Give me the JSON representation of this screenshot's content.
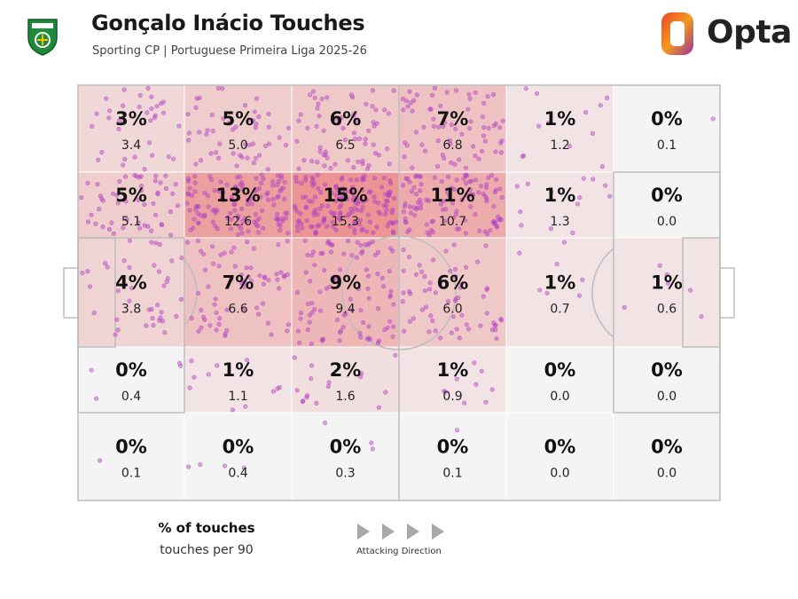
{
  "header": {
    "title": "Gonçalo Inácio Touches",
    "subtitle": "Sporting CP | Portuguese Primeira Liga 2025-26",
    "brand": "Opta",
    "club_badge_icon": "sporting-cp-crest-icon",
    "brand_logo_icon": "opta-logo-icon",
    "brand_colors": [
      "#e8452c",
      "#f39a1e",
      "#9b2f9b"
    ]
  },
  "chart_data": {
    "type": "heatmap",
    "grid": {
      "columns": 6,
      "rows": 5
    },
    "attacking_direction": "left-to-right",
    "zones": [
      [
        {
          "pct": "3%",
          "per90": "3.4",
          "value": 3
        },
        {
          "pct": "5%",
          "per90": "5.0",
          "value": 5
        },
        {
          "pct": "6%",
          "per90": "6.5",
          "value": 6
        },
        {
          "pct": "7%",
          "per90": "6.8",
          "value": 7
        },
        {
          "pct": "1%",
          "per90": "1.2",
          "value": 1
        },
        {
          "pct": "0%",
          "per90": "0.1",
          "value": 0
        }
      ],
      [
        {
          "pct": "5%",
          "per90": "5.1",
          "value": 5
        },
        {
          "pct": "13%",
          "per90": "12.6",
          "value": 13
        },
        {
          "pct": "15%",
          "per90": "15.3",
          "value": 15
        },
        {
          "pct": "11%",
          "per90": "10.7",
          "value": 11
        },
        {
          "pct": "1%",
          "per90": "1.3",
          "value": 1
        },
        {
          "pct": "0%",
          "per90": "0.0",
          "value": 0
        }
      ],
      [
        {
          "pct": "4%",
          "per90": "3.8",
          "value": 4
        },
        {
          "pct": "7%",
          "per90": "6.6",
          "value": 7
        },
        {
          "pct": "9%",
          "per90": "9.4",
          "value": 9
        },
        {
          "pct": "6%",
          "per90": "6.0",
          "value": 6
        },
        {
          "pct": "1%",
          "per90": "0.7",
          "value": 1
        },
        {
          "pct": "1%",
          "per90": "0.6",
          "value": 1
        }
      ],
      [
        {
          "pct": "0%",
          "per90": "0.4",
          "value": 0
        },
        {
          "pct": "1%",
          "per90": "1.1",
          "value": 1
        },
        {
          "pct": "2%",
          "per90": "1.6",
          "value": 2
        },
        {
          "pct": "1%",
          "per90": "0.9",
          "value": 1
        },
        {
          "pct": "0%",
          "per90": "0.0",
          "value": 0
        },
        {
          "pct": "0%",
          "per90": "0.0",
          "value": 0
        }
      ],
      [
        {
          "pct": "0%",
          "per90": "0.1",
          "value": 0
        },
        {
          "pct": "0%",
          "per90": "0.4",
          "value": 0
        },
        {
          "pct": "0%",
          "per90": "0.3",
          "value": 0
        },
        {
          "pct": "0%",
          "per90": "0.1",
          "value": 0
        },
        {
          "pct": "0%",
          "per90": "0.0",
          "value": 0
        },
        {
          "pct": "0%",
          "per90": "0.0",
          "value": 0
        }
      ]
    ],
    "touch_dot_color": "#b23fc4",
    "heat_color": "#e24a4a",
    "pitch_fill": "#f4f4f4",
    "pitch_line_color": "#bdbdbd"
  },
  "legend": {
    "pct_label": "% of touches",
    "per90_label": "touches per 90",
    "direction_label": "Attacking Direction",
    "direction_icon": "play-arrow-icon"
  }
}
